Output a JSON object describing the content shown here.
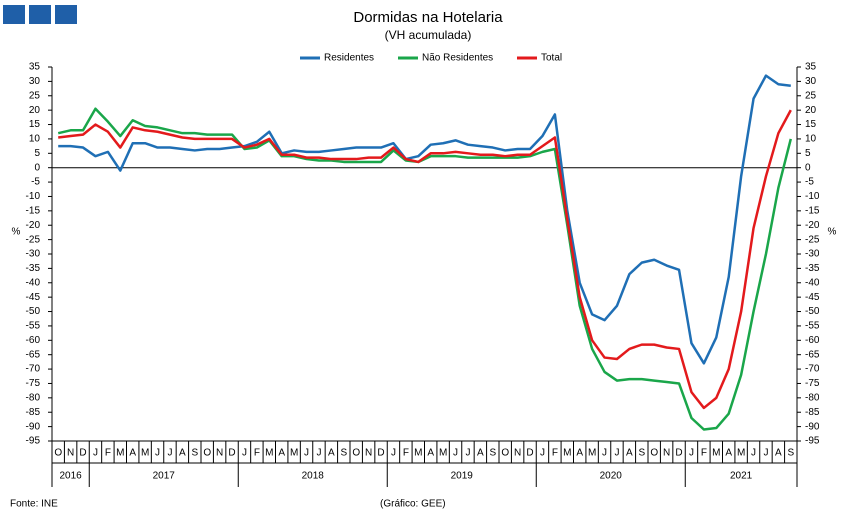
{
  "chart_data": {
    "type": "line",
    "title": "Dormidas na Hotelaria",
    "subtitle": "(VH acumulada)",
    "ylabel": "%",
    "y2label": "%",
    "source": "Fonte: INE",
    "credit": "(Gráfico: GEE)",
    "categories": [
      "O",
      "N",
      "D",
      "J",
      "F",
      "M",
      "A",
      "M",
      "J",
      "J",
      "A",
      "S",
      "O",
      "N",
      "D",
      "J",
      "F",
      "M",
      "A",
      "M",
      "J",
      "J",
      "A",
      "S",
      "O",
      "N",
      "D",
      "J",
      "F",
      "M",
      "A",
      "M",
      "J",
      "J",
      "A",
      "S",
      "O",
      "N",
      "D",
      "J",
      "F",
      "M",
      "A",
      "M",
      "J",
      "J",
      "A",
      "S",
      "O",
      "N",
      "D",
      "J",
      "F",
      "M",
      "A",
      "M",
      "J",
      "J",
      "A",
      "S"
    ],
    "years": [
      "2016",
      "2017",
      "2018",
      "2019",
      "2020",
      "2021"
    ],
    "series": [
      {
        "name": "Residentes",
        "color": "#1f6fb5",
        "values": [
          7.5,
          7.5,
          7,
          4,
          5.5,
          -1,
          8.5,
          8.5,
          7,
          7,
          6.5,
          6,
          6.5,
          6.5,
          7,
          7.5,
          9,
          12.5,
          5,
          6,
          5.5,
          5.5,
          6,
          6.5,
          7,
          7,
          7,
          8.5,
          3,
          4,
          8,
          8.5,
          9.5,
          8,
          7.5,
          7,
          6,
          6.5,
          6.5,
          11,
          18.5,
          -15,
          -40,
          -51,
          -53,
          -48,
          -37,
          -33,
          -32,
          -34,
          -35.5,
          -61,
          -68,
          -59,
          -38,
          -3,
          24,
          32,
          29,
          28.5
        ]
      },
      {
        "name": "Não Residentes",
        "color": "#1aa64a",
        "values": [
          12,
          13,
          13,
          20.5,
          16,
          11,
          16.5,
          14.5,
          14,
          13,
          12,
          12,
          11.5,
          11.5,
          11.5,
          6.5,
          7,
          9.5,
          4,
          4,
          3,
          2.5,
          2.5,
          2,
          2,
          2,
          2,
          6,
          2.5,
          2,
          4,
          4,
          4,
          3.5,
          3.5,
          3.5,
          3.5,
          3.5,
          4,
          5.5,
          6.5,
          -20,
          -48,
          -63,
          -71,
          -74,
          -73.5,
          -73.5,
          -74,
          -74.5,
          -75,
          -87,
          -91,
          -90.5,
          -85.5,
          -72,
          -50,
          -30,
          -7,
          10
        ]
      },
      {
        "name": "Total",
        "color": "#e31a1c",
        "values": [
          10.5,
          11,
          11.5,
          15,
          12.5,
          7,
          14,
          13,
          12.5,
          11.5,
          10.5,
          10,
          10,
          10,
          10,
          7,
          8,
          10,
          4.5,
          4.5,
          3.5,
          3.5,
          3,
          3,
          3,
          3.5,
          3.5,
          7,
          3,
          2,
          5,
          5,
          5.5,
          5,
          4.5,
          4.5,
          4,
          4.5,
          4.5,
          7.5,
          10.5,
          -18,
          -45,
          -60,
          -66,
          -66.5,
          -63,
          -61.5,
          -61.5,
          -62.5,
          -63,
          -78,
          -83.5,
          -80,
          -70,
          -50,
          -21,
          -3,
          12,
          20
        ]
      }
    ],
    "ylim": [
      -95,
      35
    ],
    "yticks": [
      35,
      30,
      25,
      20,
      15,
      10,
      5,
      0,
      -5,
      -10,
      -15,
      -20,
      -25,
      -30,
      -35,
      -40,
      -45,
      -50,
      -55,
      -60,
      -65,
      -70,
      -75,
      -80,
      -85,
      -90,
      -95
    ],
    "y2lim": [
      -95,
      35
    ],
    "y2ticks": [
      35,
      30,
      25,
      20,
      15,
      10,
      5,
      0,
      -5,
      -10,
      -15,
      -20,
      -25,
      -30,
      -35,
      -40,
      -45,
      -50,
      -55,
      -60,
      -65,
      -70,
      -75,
      -80,
      -85,
      -90,
      -95
    ]
  }
}
